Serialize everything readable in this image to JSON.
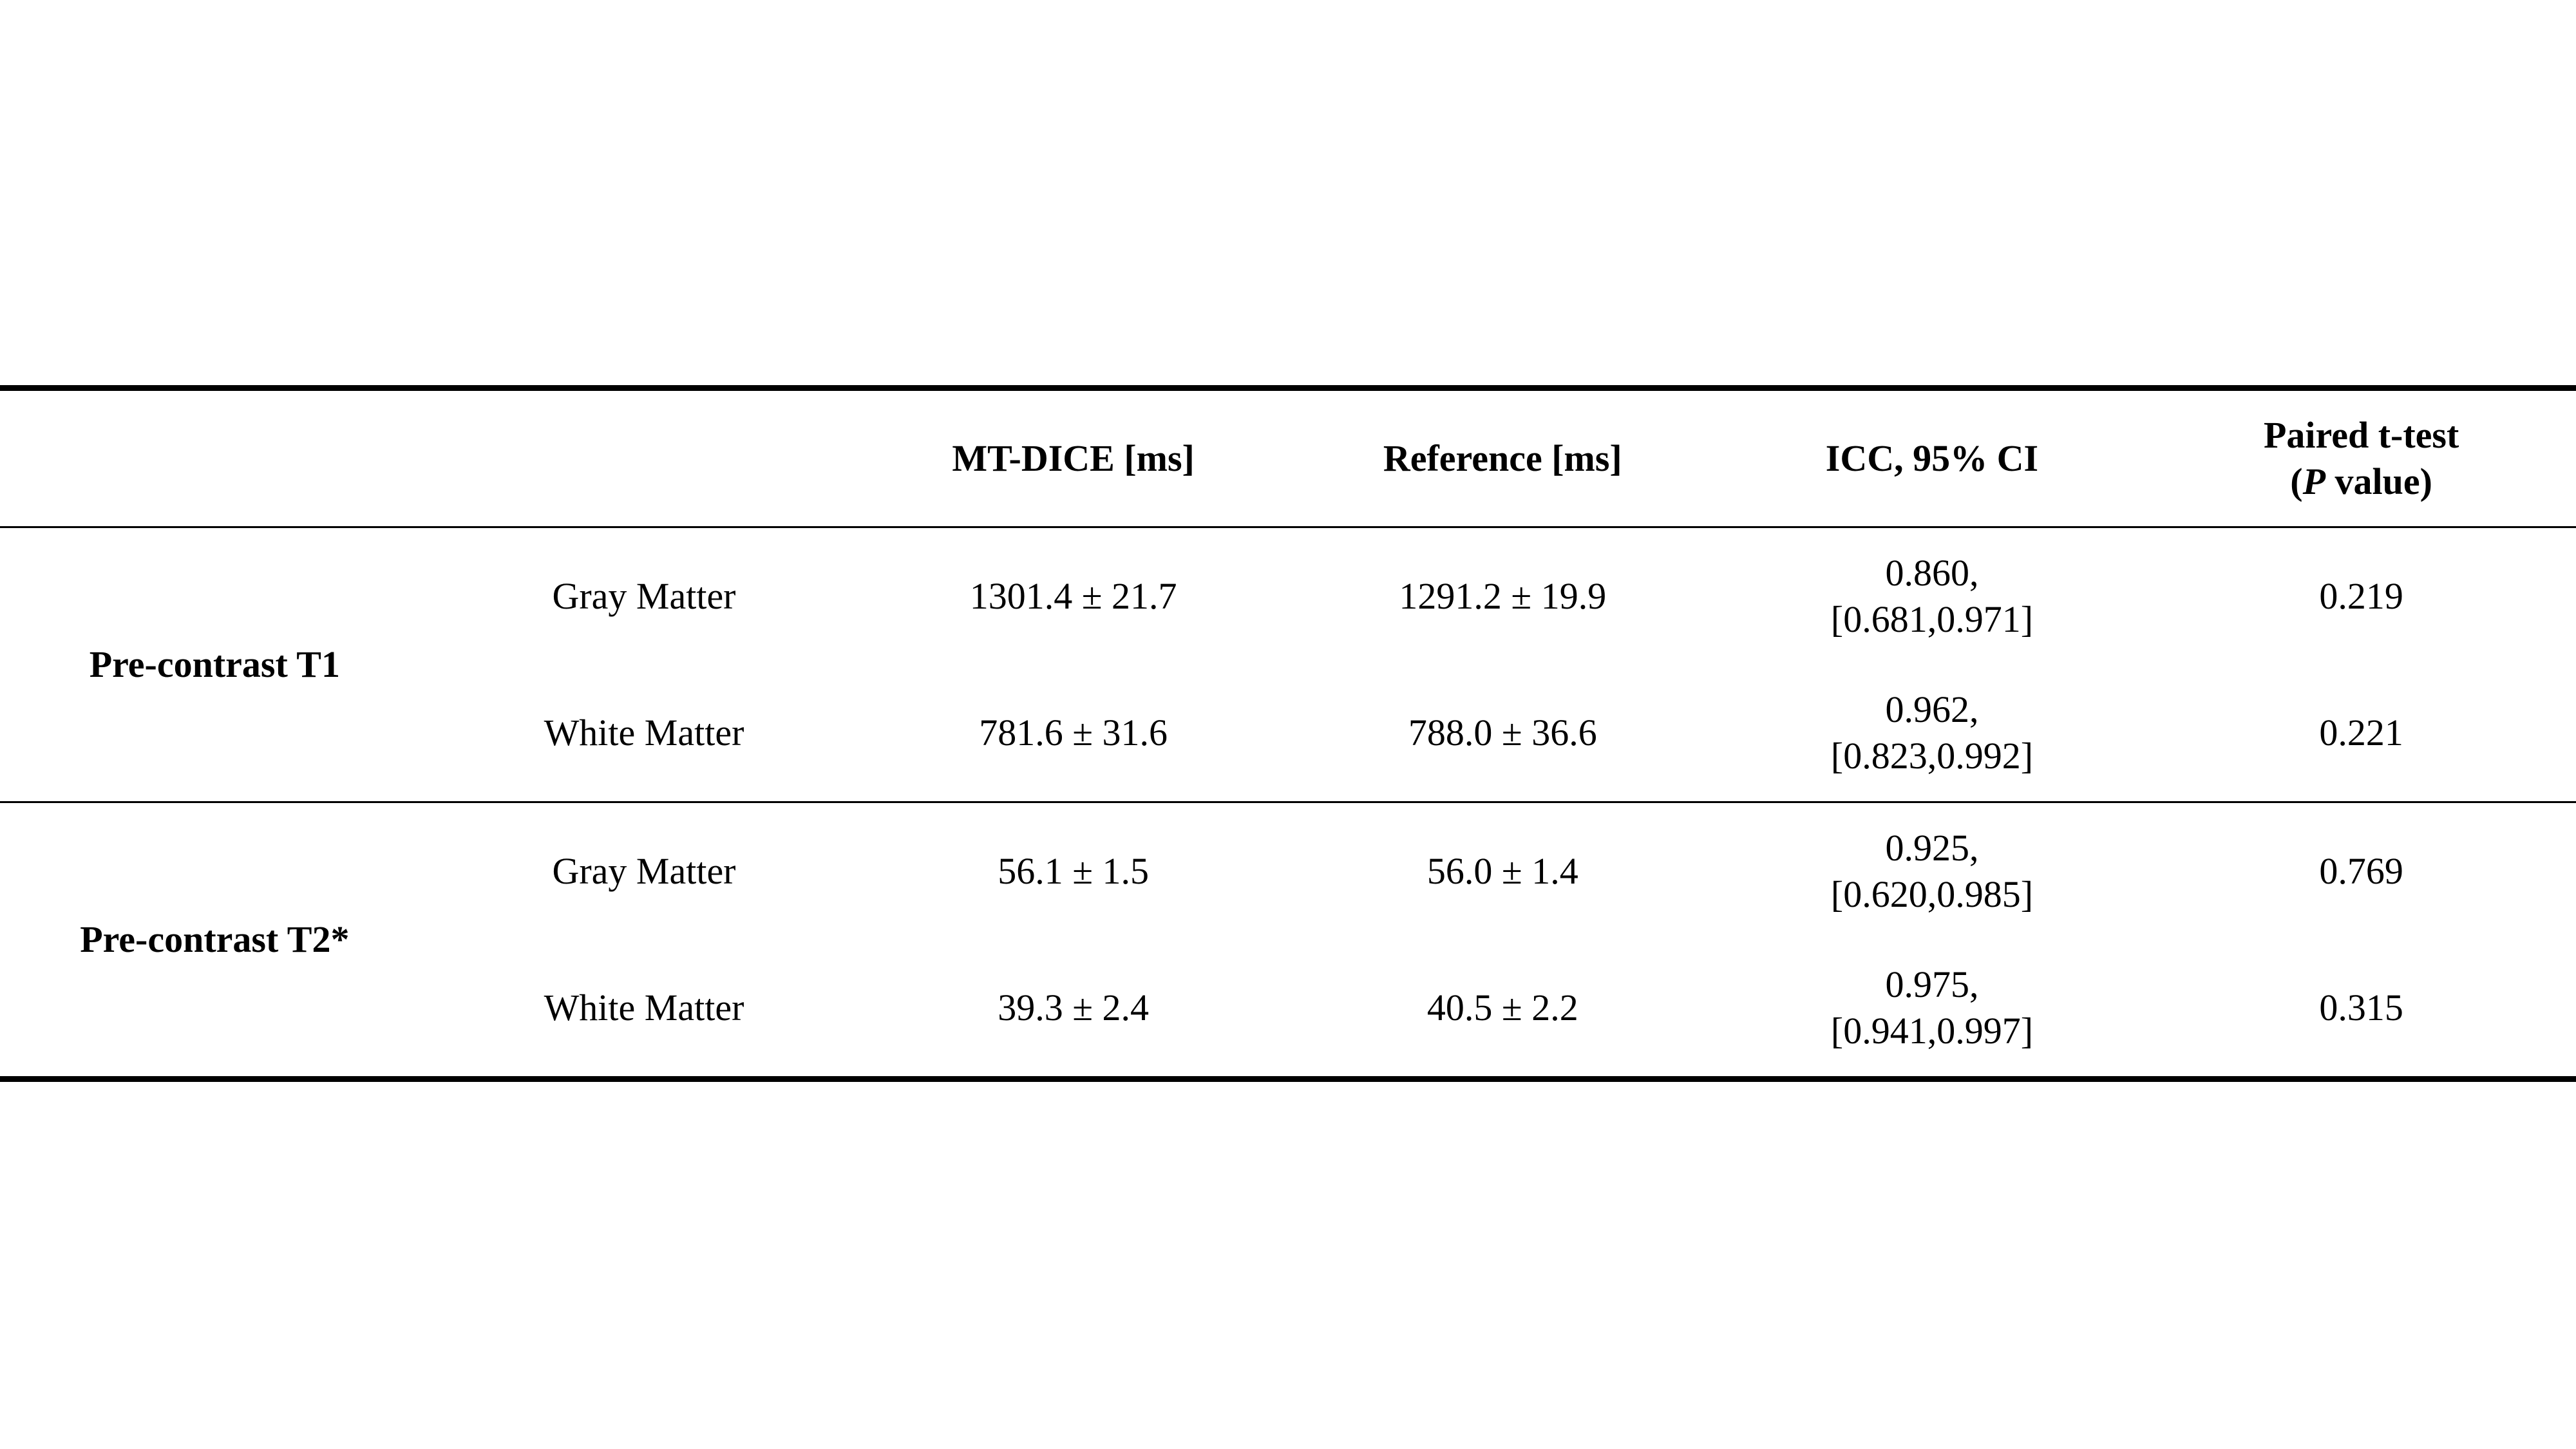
{
  "page": {
    "background": "#ffffff",
    "text_color": "#000000"
  },
  "table": {
    "headers": {
      "col_group": "",
      "col_tissue": "",
      "col_mt_dice": "MT-DICE [ms]",
      "col_reference": "Reference [ms]",
      "col_icc": "ICC, 95% CI",
      "paired_line1": "Paired t-test",
      "paired_open": "(",
      "paired_p": "P",
      "paired_rest": " value)"
    },
    "groups": [
      {
        "label": "Pre-contrast T1",
        "rows": [
          {
            "tissue": "Gray Matter",
            "mt_dice": "1301.4 ± 21.7",
            "reference": "1291.2 ± 19.9",
            "icc_line1": "0.860,",
            "icc_line2": "[0.681,0.971]",
            "p_value": "0.219"
          },
          {
            "tissue": "White Matter",
            "mt_dice": "781.6 ± 31.6",
            "reference": "788.0 ± 36.6",
            "icc_line1": "0.962,",
            "icc_line2": "[0.823,0.992]",
            "p_value": "0.221"
          }
        ]
      },
      {
        "label": "Pre-contrast T2*",
        "rows": [
          {
            "tissue": "Gray Matter",
            "mt_dice": "56.1 ± 1.5",
            "reference": "56.0 ± 1.4",
            "icc_line1": "0.925,",
            "icc_line2": "[0.620,0.985]",
            "p_value": "0.769"
          },
          {
            "tissue": "White Matter",
            "mt_dice": "39.3 ± 2.4",
            "reference": "40.5 ± 2.2",
            "icc_line1": "0.975,",
            "icc_line2": "[0.941,0.997]",
            "p_value": "0.315"
          }
        ]
      }
    ]
  }
}
